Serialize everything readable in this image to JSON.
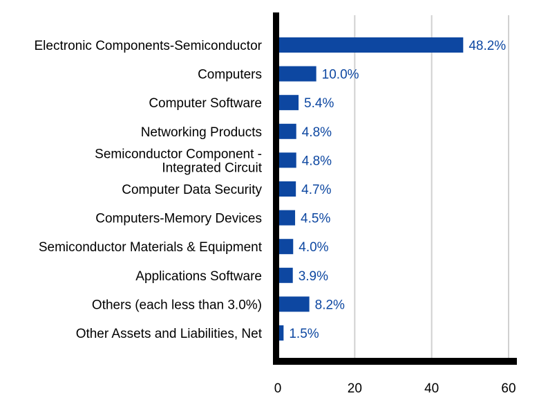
{
  "chart_data": {
    "type": "bar",
    "orientation": "horizontal",
    "categories": [
      [
        "Electronic Components-Semiconductor"
      ],
      [
        "Computers"
      ],
      [
        "Computer Software"
      ],
      [
        "Networking Products"
      ],
      [
        "Semiconductor Component -",
        "Integrated Circuit"
      ],
      [
        "Computer Data Security"
      ],
      [
        "Computers-Memory Devices"
      ],
      [
        "Semiconductor Materials & Equipment"
      ],
      [
        "Applications Software"
      ],
      [
        "Others (each less than 3.0%)"
      ],
      [
        "Other Assets and Liabilities, Net"
      ]
    ],
    "values": [
      48.2,
      10.0,
      5.4,
      4.8,
      4.8,
      4.7,
      4.5,
      4.0,
      3.9,
      8.2,
      1.5
    ],
    "value_labels": [
      "48.2%",
      "10.0%",
      "5.4%",
      "4.8%",
      "4.8%",
      "4.7%",
      "4.5%",
      "4.0%",
      "3.9%",
      "8.2%",
      "1.5%"
    ],
    "xlim": [
      0,
      60
    ],
    "xticks": [
      0,
      20,
      40,
      60
    ],
    "xtick_labels": [
      "0",
      "20",
      "40",
      "60"
    ],
    "title": "",
    "xlabel": "",
    "ylabel": "",
    "grid": "vertical",
    "legend": "none",
    "colors": {
      "bar": "#0d47a1",
      "value_label": "#0d47a1",
      "grid": "#d0d0d0",
      "axis": "#000000"
    }
  }
}
